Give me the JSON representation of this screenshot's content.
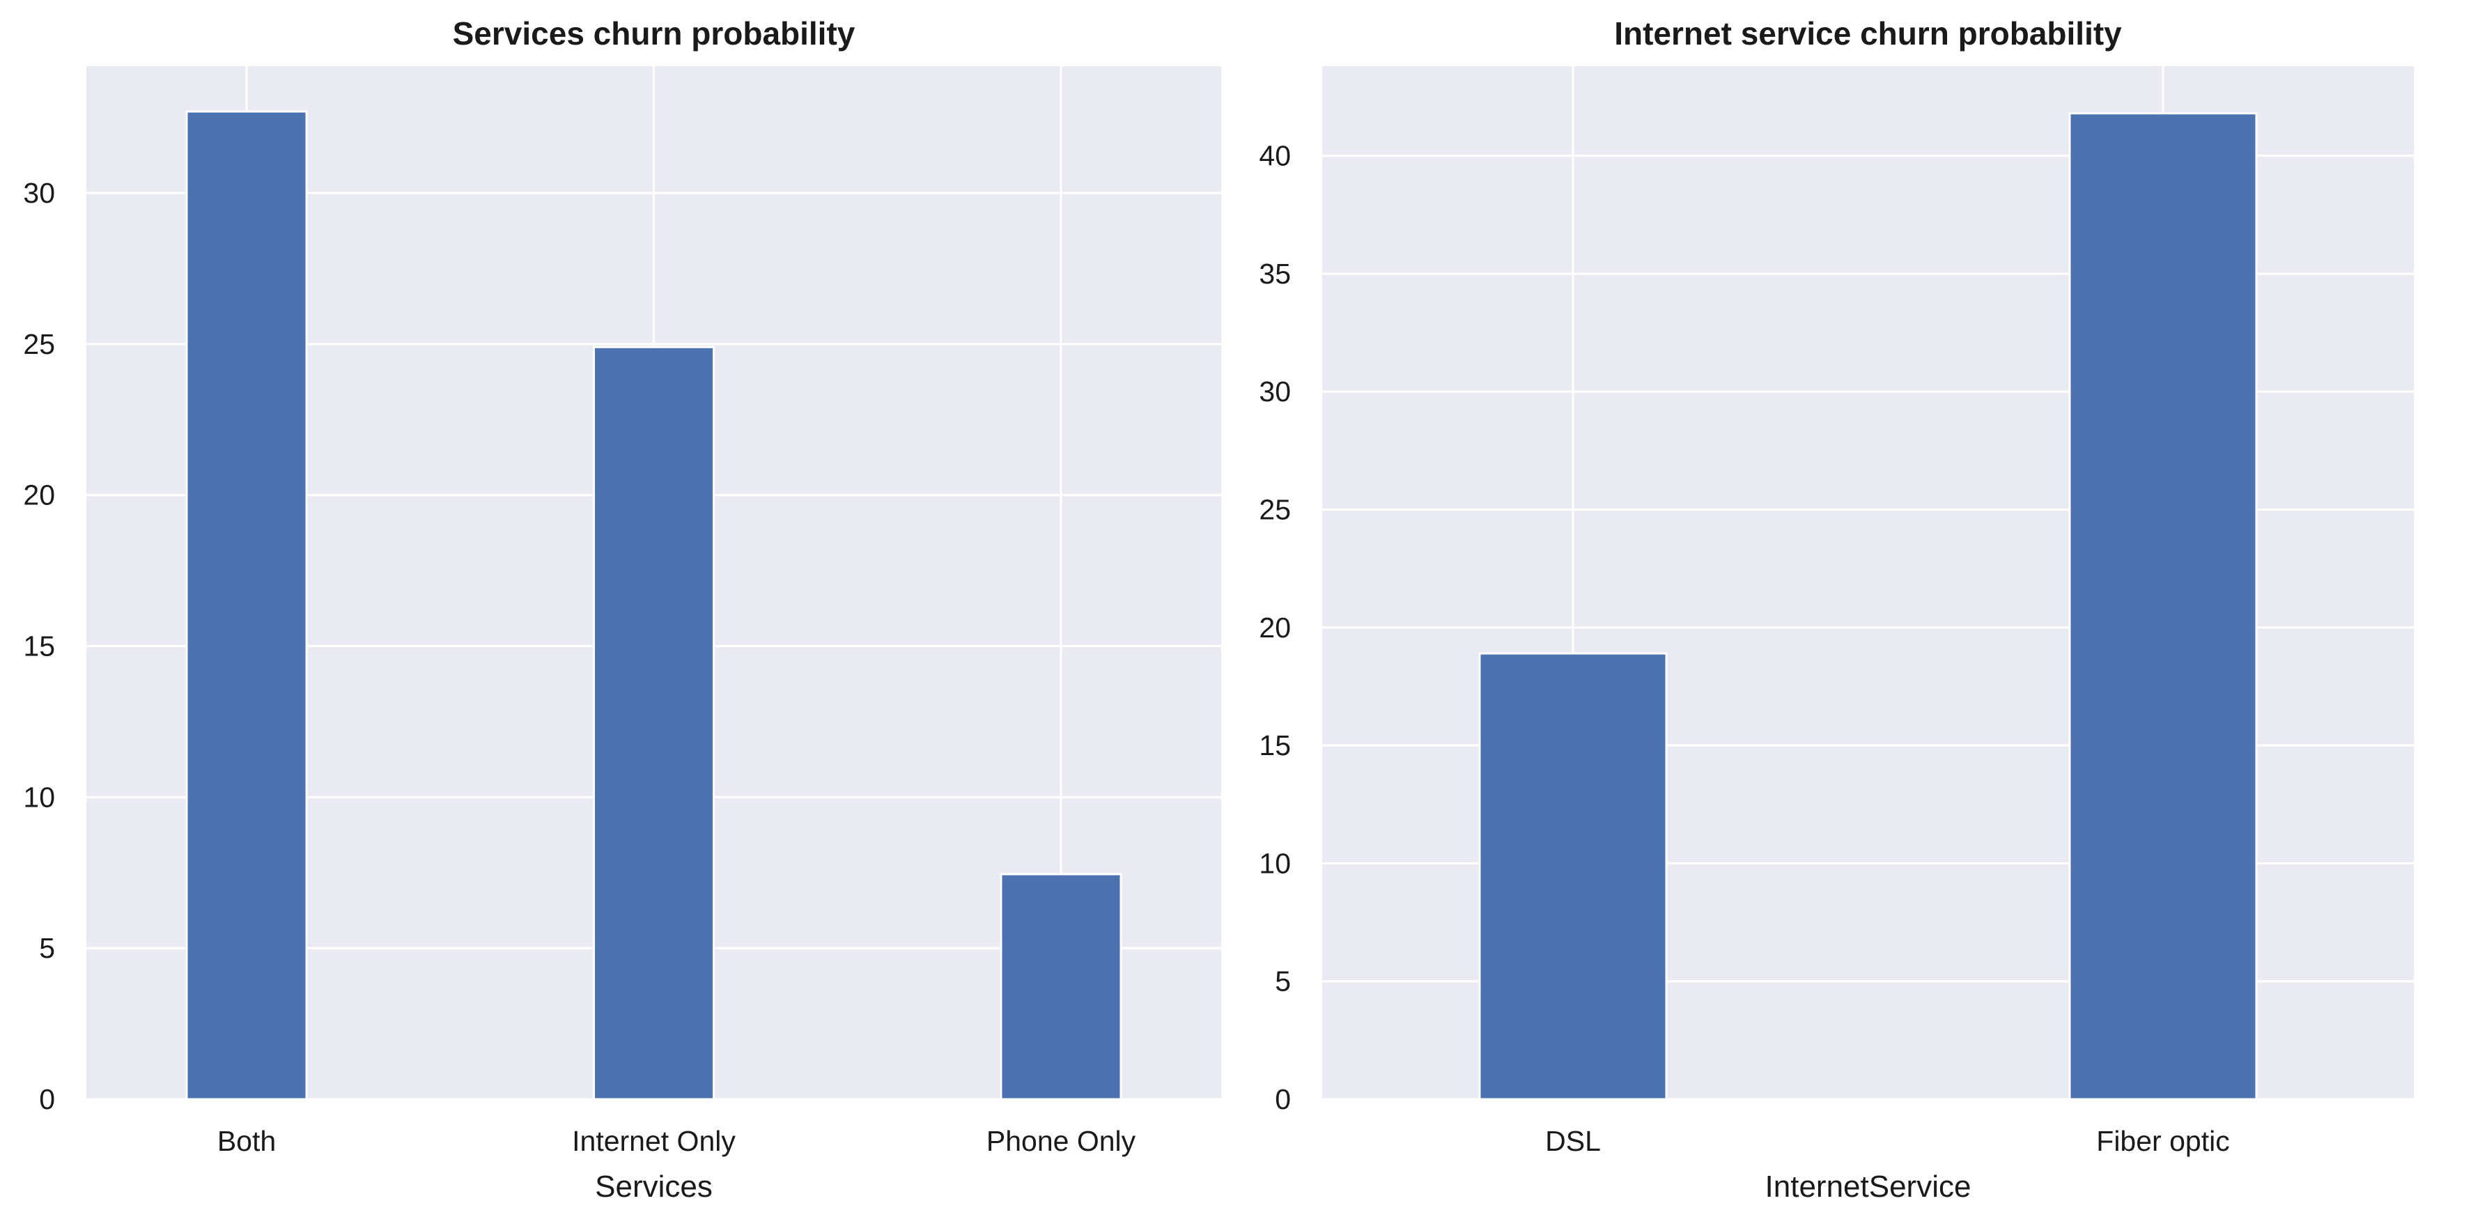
{
  "chart_data": [
    {
      "type": "bar",
      "title": "Services churn probability",
      "xlabel": "Services",
      "ylabel": "",
      "categories": [
        "Both",
        "Internet Only",
        "Phone Only"
      ],
      "values": [
        32.7,
        24.9,
        7.45
      ],
      "ylim": [
        0,
        34.2
      ],
      "yticks": [
        0,
        5,
        10,
        15,
        20,
        25,
        30
      ],
      "grid": true,
      "bar_color": "#4c72b0",
      "background_color": "#eaeaf2"
    },
    {
      "type": "bar",
      "title": "Internet service churn probability",
      "xlabel": "InternetService",
      "ylabel": "",
      "categories": [
        "DSL",
        "Fiber optic"
      ],
      "values": [
        18.9,
        41.8
      ],
      "ylim": [
        0,
        43.8
      ],
      "yticks": [
        0,
        5,
        10,
        15,
        20,
        25,
        30,
        35,
        40
      ],
      "grid": true,
      "bar_color": "#4c72b0",
      "background_color": "#eaeaf2"
    }
  ]
}
